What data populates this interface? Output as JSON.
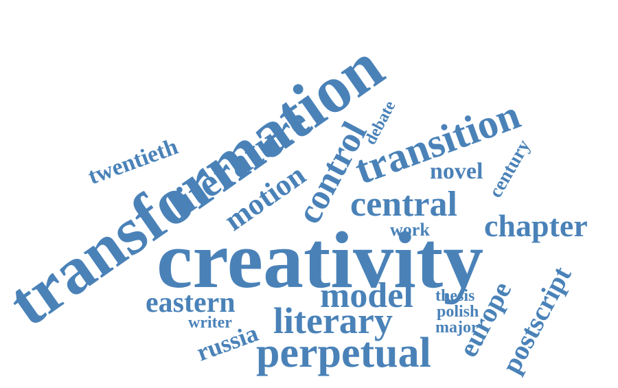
{
  "word_cloud": {
    "color": "#4a82b8",
    "words": {
      "transformation": "transformation",
      "creativity": "creativity",
      "transition": "transition",
      "literature": "literature",
      "control": "control",
      "central": "central",
      "perpetual": "perpetual",
      "literary": "literary",
      "model": "model",
      "chapter": "chapter",
      "eastern": "eastern",
      "motion": "motion",
      "europe": "europe",
      "postscript": "postscript",
      "twentieth": "twentieth",
      "russia": "russia",
      "century": "century",
      "novel": "novel",
      "debate": "debate",
      "work": "work",
      "thesis": "thesis",
      "polish": "polish",
      "major": "major",
      "writer": "writer"
    }
  }
}
